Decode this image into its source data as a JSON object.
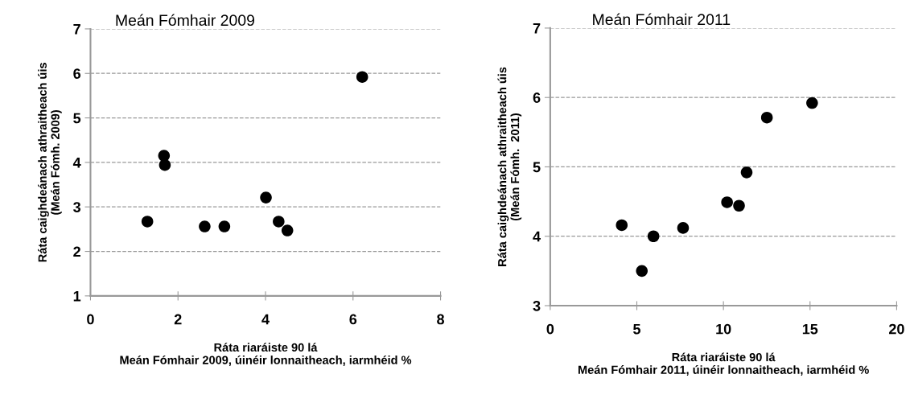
{
  "chart_data": [
    {
      "type": "scatter",
      "title": "Meán Fómhair 2009",
      "xlabel": "Ráta riaráiste 90 lá\nMeán Fómhair 2009, úinéir lonnaitheach, iarmhéid %",
      "ylabel": "Ráta caighdeánach athraitheach úis\n(Meán Fómh. 2009)",
      "x": [
        1.3,
        1.68,
        1.7,
        2.61,
        3.06,
        4.01,
        4.3,
        4.5,
        6.21
      ],
      "values": [
        2.67,
        4.15,
        3.94,
        2.56,
        2.56,
        3.21,
        2.67,
        2.47,
        5.92
      ],
      "color": "#000000",
      "marker": "circle",
      "xlim": [
        0,
        8
      ],
      "xticks": [
        0,
        2,
        4,
        6,
        8
      ],
      "ylim": [
        1,
        7
      ],
      "yticks": [
        1,
        2,
        3,
        4,
        5,
        6,
        7
      ],
      "grid": "y",
      "legend": false
    },
    {
      "type": "scatter",
      "title": "Meán Fómhair 2011",
      "xlabel": "Ráta riaráiste 90 lá\nMeán Fómhair 2011, úinéir lonnaitheach, iarmhéid %",
      "ylabel": "Ráta caighdeánach athraitheach úis\n(Meán Fómh.  2011)",
      "x": [
        4.13,
        5.29,
        5.96,
        7.67,
        10.21,
        10.9,
        11.34,
        12.51,
        15.12
      ],
      "values": [
        4.16,
        3.5,
        4.0,
        4.12,
        4.49,
        4.44,
        4.92,
        5.71,
        5.92
      ],
      "color": "#000000",
      "marker": "circle",
      "xlim": [
        0,
        20
      ],
      "xticks": [
        0,
        5,
        10,
        15,
        20
      ],
      "ylim": [
        3,
        7
      ],
      "yticks": [
        3,
        4,
        5,
        6,
        7
      ],
      "grid": "y",
      "legend": false
    }
  ]
}
